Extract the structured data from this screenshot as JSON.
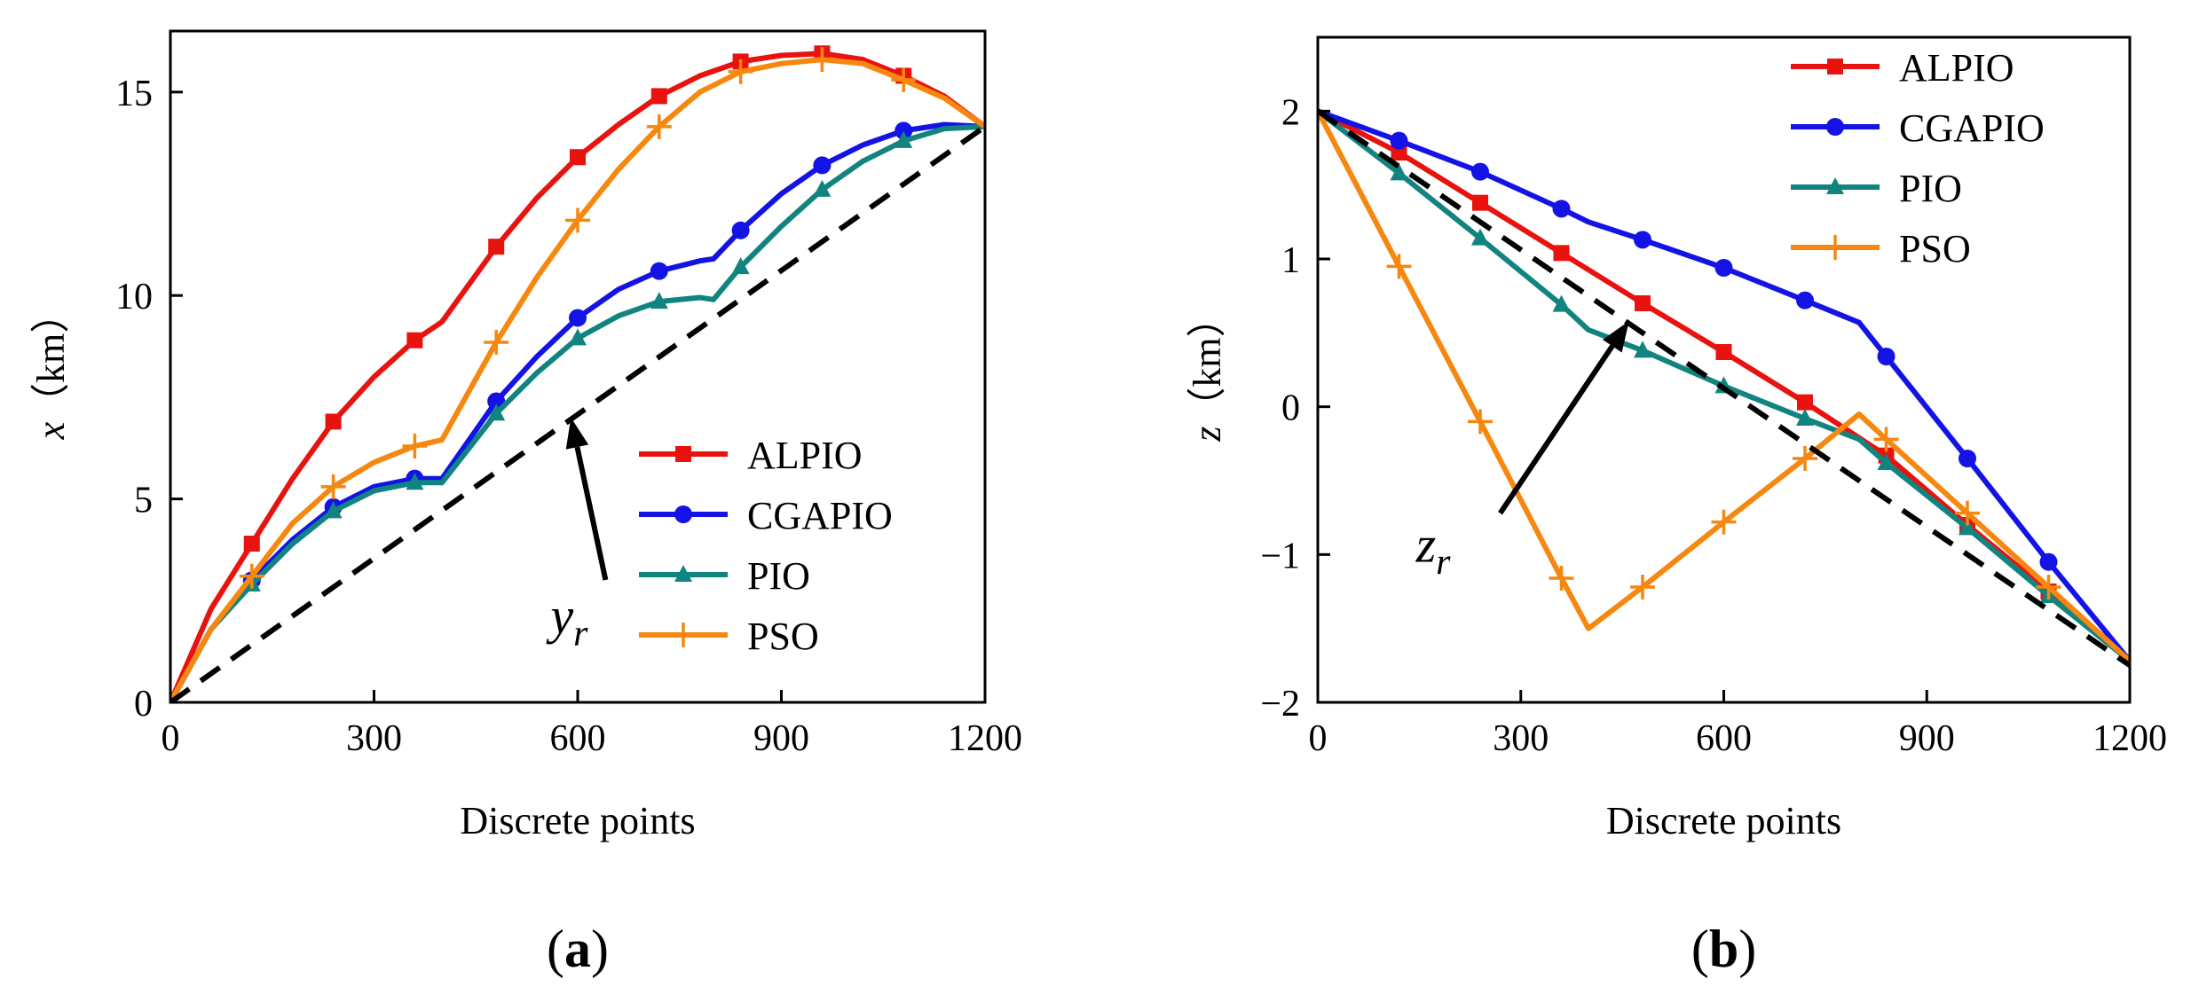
{
  "colors": {
    "ALPIO": "#e8120f",
    "CGAPIO": "#1313e6",
    "PIO": "#128480",
    "PSO": "#f6870f",
    "reference": "#000000"
  },
  "chart_data": [
    {
      "panel": "a",
      "panel_label": "(a)",
      "type": "line",
      "xlabel": "Discrete points",
      "ylabel_var": "x",
      "ylabel_unit": "（km）",
      "xlim": [
        0,
        1200
      ],
      "ylim": [
        0,
        16.5
      ],
      "xticks": [
        0,
        300,
        600,
        900,
        1200
      ],
      "yticks": [
        0,
        5,
        10,
        15
      ],
      "legend_position": "lower-right",
      "annotation": {
        "base": "y",
        "sub": "r",
        "arrow_to": [
          590,
          7.0
        ],
        "text_at": [
          560,
          1.7
        ]
      },
      "series": [
        {
          "name": "ALPIO",
          "x": [
            0,
            60,
            120,
            180,
            240,
            300,
            360,
            400,
            480,
            540,
            600,
            660,
            720,
            780,
            840,
            900,
            960,
            1020,
            1080,
            1140,
            1200
          ],
          "y": [
            0,
            2.3,
            3.9,
            5.5,
            6.9,
            8.0,
            8.9,
            9.35,
            11.2,
            12.4,
            13.4,
            14.2,
            14.9,
            15.4,
            15.75,
            15.9,
            15.95,
            15.8,
            15.4,
            14.9,
            14.15
          ],
          "marker_x": [
            120,
            240,
            360,
            480,
            600,
            720,
            840,
            960,
            1080
          ]
        },
        {
          "name": "CGAPIO",
          "x": [
            0,
            60,
            120,
            180,
            240,
            300,
            360,
            400,
            480,
            540,
            600,
            660,
            720,
            780,
            800,
            840,
            900,
            960,
            1020,
            1080,
            1140,
            1200
          ],
          "y": [
            0,
            1.8,
            3.0,
            4.0,
            4.8,
            5.3,
            5.5,
            5.5,
            7.4,
            8.5,
            9.45,
            10.15,
            10.6,
            10.85,
            10.9,
            11.6,
            12.5,
            13.2,
            13.7,
            14.05,
            14.2,
            14.15
          ],
          "marker_x": [
            120,
            240,
            360,
            480,
            600,
            720,
            840,
            960,
            1080
          ]
        },
        {
          "name": "PIO",
          "x": [
            0,
            60,
            120,
            180,
            240,
            300,
            360,
            400,
            480,
            540,
            600,
            660,
            720,
            780,
            800,
            840,
            900,
            960,
            1020,
            1080,
            1140,
            1200
          ],
          "y": [
            0,
            1.8,
            2.9,
            3.9,
            4.7,
            5.2,
            5.4,
            5.4,
            7.1,
            8.1,
            8.95,
            9.5,
            9.85,
            9.95,
            9.9,
            10.7,
            11.7,
            12.6,
            13.3,
            13.8,
            14.1,
            14.15
          ],
          "marker_x": [
            120,
            240,
            360,
            480,
            600,
            720,
            840,
            960,
            1080
          ]
        },
        {
          "name": "PSO",
          "x": [
            0,
            60,
            120,
            180,
            240,
            300,
            360,
            400,
            480,
            540,
            600,
            660,
            720,
            780,
            840,
            900,
            960,
            1020,
            1080,
            1140,
            1200
          ],
          "y": [
            0,
            1.8,
            3.1,
            4.4,
            5.3,
            5.9,
            6.3,
            6.45,
            8.85,
            10.45,
            11.85,
            13.1,
            14.15,
            15.0,
            15.5,
            15.7,
            15.8,
            15.7,
            15.3,
            14.85,
            14.15
          ],
          "marker_x": [
            120,
            240,
            360,
            480,
            600,
            720,
            840,
            960,
            1080
          ]
        },
        {
          "name": "reference",
          "x": [
            0,
            1200
          ],
          "y": [
            0,
            14.15
          ],
          "marker_x": []
        }
      ]
    },
    {
      "panel": "b",
      "panel_label": "(b)",
      "type": "line",
      "xlabel": "Discrete points",
      "ylabel_var": "z",
      "ylabel_unit": "（km）",
      "xlim": [
        0,
        1200
      ],
      "ylim": [
        -2,
        2.5
      ],
      "xticks": [
        0,
        300,
        600,
        900,
        1200
      ],
      "yticks": [
        -2,
        -1,
        0,
        1,
        2
      ],
      "legend_position": "top-right",
      "annotation": {
        "base": "z",
        "sub": "r",
        "arrow_to": [
          460,
          0.58
        ],
        "text_at": [
          145,
          -1.05
        ]
      },
      "series": [
        {
          "name": "ALPIO",
          "x": [
            0,
            120,
            240,
            360,
            480,
            600,
            720,
            840,
            960,
            1080,
            1200
          ],
          "y": [
            2.0,
            1.72,
            1.38,
            1.04,
            0.7,
            0.37,
            0.03,
            -0.33,
            -0.8,
            -1.25,
            -1.72
          ],
          "marker_x": [
            120,
            240,
            360,
            480,
            600,
            720,
            840,
            960,
            1080
          ]
        },
        {
          "name": "CGAPIO",
          "x": [
            0,
            120,
            240,
            360,
            400,
            480,
            600,
            720,
            800,
            840,
            960,
            1080,
            1200
          ],
          "y": [
            2.0,
            1.8,
            1.59,
            1.34,
            1.25,
            1.13,
            0.94,
            0.72,
            0.57,
            0.34,
            -0.35,
            -1.05,
            -1.72
          ],
          "marker_x": [
            120,
            240,
            360,
            480,
            600,
            720,
            840,
            960,
            1080
          ]
        },
        {
          "name": "PIO",
          "x": [
            0,
            120,
            240,
            360,
            400,
            480,
            600,
            720,
            800,
            840,
            960,
            1080,
            1200
          ],
          "y": [
            2.0,
            1.58,
            1.14,
            0.69,
            0.52,
            0.38,
            0.14,
            -0.08,
            -0.22,
            -0.38,
            -0.82,
            -1.28,
            -1.72
          ],
          "marker_x": [
            120,
            240,
            360,
            480,
            600,
            720,
            840,
            960,
            1080
          ]
        },
        {
          "name": "PSO",
          "x": [
            0,
            120,
            240,
            360,
            400,
            480,
            600,
            720,
            800,
            840,
            960,
            1080,
            1200
          ],
          "y": [
            2.0,
            0.95,
            -0.1,
            -1.16,
            -1.5,
            -1.22,
            -0.78,
            -0.35,
            -0.05,
            -0.22,
            -0.72,
            -1.22,
            -1.72
          ],
          "marker_x": [
            120,
            240,
            360,
            480,
            600,
            720,
            840,
            960,
            1080
          ]
        },
        {
          "name": "reference",
          "x": [
            0,
            1200
          ],
          "y": [
            2.0,
            -1.75
          ],
          "marker_x": []
        }
      ]
    }
  ]
}
